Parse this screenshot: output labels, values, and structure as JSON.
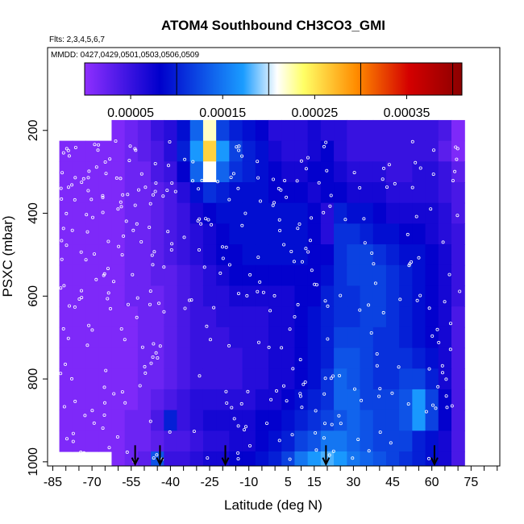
{
  "chart_data": {
    "type": "heatmap",
    "title": "ATOM4 Southbound CH3CO3_GMI",
    "subtitle_flights": "Flts: 2,3,4,5,6,7",
    "subtitle_dates": "MMDD: 0427,0429,0501,0503,0506,0509",
    "xlabel": "Latitude (deg N)",
    "ylabel": "PSXC (mbar)",
    "xlim": [
      -87,
      86
    ],
    "ylim_reversed": [
      1010,
      0
    ],
    "x_ticks": [
      -85,
      -70,
      -55,
      -40,
      -25,
      -10,
      5,
      15,
      30,
      45,
      60,
      75
    ],
    "x_tick_labels": [
      "-85",
      "-70",
      "-55",
      "-40",
      "-25",
      "-10",
      "5",
      "15",
      "30",
      "45",
      "60",
      "75"
    ],
    "x_minor_ticks": [
      -80,
      -75,
      -65,
      -60,
      -50,
      -45,
      -35,
      -30,
      -20,
      -15,
      -5,
      0,
      10,
      20,
      25,
      35,
      40,
      50,
      55,
      65,
      70,
      80,
      85
    ],
    "y_ticks": [
      200,
      400,
      600,
      800,
      1000
    ],
    "y_tick_labels": [
      "200",
      "400",
      "600",
      "800",
      "1000"
    ],
    "colorbar": {
      "range": [
        0,
        0.00041
      ],
      "tick_values": [
        5e-05,
        0.00015,
        0.00025,
        0.00035
      ],
      "tick_labels": [
        "0.00005",
        "0.00015",
        "0.00025",
        "0.00035"
      ],
      "break_values": [
        0.0001,
        0.0002,
        0.0003,
        0.0004
      ],
      "colors": [
        "#8f2fff",
        "#0000cc",
        "#1a9cff",
        "#ffffff",
        "#ffff66",
        "#ff8c00",
        "#d40000",
        "#8b0000"
      ],
      "color_stops": [
        0,
        0.2,
        0.42,
        0.51,
        0.58,
        0.72,
        0.86,
        1.0
      ]
    },
    "latitude_bins": [
      -80,
      -75,
      -70,
      -65,
      -60,
      -55,
      -50,
      -45,
      -40,
      -35,
      -30,
      -25,
      -20,
      -15,
      -10,
      -5,
      0,
      5,
      10,
      15,
      20,
      25,
      30,
      35,
      40,
      45,
      50,
      55,
      60,
      65,
      70
    ],
    "pressure_bins": [
      200,
      250,
      300,
      350,
      400,
      450,
      500,
      550,
      600,
      650,
      700,
      750,
      800,
      850,
      900,
      950,
      1000
    ],
    "values_e5": [
      [
        null,
        null,
        null,
        null,
        1,
        2,
        3,
        5,
        6,
        9,
        14,
        22,
        12,
        10,
        9,
        8,
        6,
        6,
        6,
        7,
        6,
        6,
        5,
        5,
        5,
        5,
        5,
        5,
        5,
        4,
        1
      ],
      [
        1,
        1,
        1,
        1,
        1,
        2,
        3,
        4,
        6,
        10,
        17,
        26,
        17,
        12,
        10,
        9,
        7,
        6,
        6,
        7,
        8,
        6,
        5,
        5,
        5,
        5,
        5,
        5,
        5,
        3,
        1
      ],
      [
        1,
        1,
        1,
        1,
        1,
        2,
        2,
        4,
        5,
        8,
        14,
        21,
        14,
        11,
        10,
        9,
        8,
        7,
        7,
        8,
        8,
        7,
        6,
        6,
        6,
        5,
        5,
        6,
        6,
        5,
        3
      ],
      [
        1,
        1,
        1,
        1,
        1,
        2,
        2,
        3,
        4,
        6,
        9,
        11,
        10,
        9,
        9,
        9,
        8,
        8,
        8,
        7,
        8,
        8,
        7,
        7,
        7,
        6,
        6,
        6,
        6,
        5,
        4
      ],
      [
        1,
        1,
        1,
        1,
        1,
        2,
        2,
        3,
        4,
        5,
        7,
        8,
        9,
        9,
        9,
        9,
        9,
        9,
        9,
        8,
        6,
        10,
        9,
        9,
        8,
        7,
        7,
        7,
        7,
        6,
        4
      ],
      [
        1,
        1,
        1,
        1,
        1,
        2,
        2,
        3,
        4,
        5,
        6,
        7,
        8,
        9,
        9,
        9,
        9,
        9,
        9,
        8,
        6,
        11,
        11,
        10,
        9,
        9,
        8,
        8,
        7,
        6,
        5
      ],
      [
        1,
        1,
        1,
        1,
        1,
        2,
        2,
        3,
        4,
        5,
        6,
        7,
        8,
        8,
        9,
        9,
        9,
        9,
        9,
        8,
        8,
        11,
        12,
        12,
        11,
        10,
        9,
        9,
        8,
        7,
        5
      ],
      [
        1,
        1,
        1,
        1,
        1,
        2,
        2,
        3,
        3,
        4,
        5,
        6,
        7,
        8,
        8,
        8,
        8,
        8,
        8,
        8,
        9,
        11,
        12,
        12,
        12,
        11,
        10,
        9,
        8,
        7,
        5
      ],
      [
        1,
        1,
        1,
        1,
        1,
        2,
        2,
        2,
        3,
        4,
        5,
        6,
        6,
        7,
        7,
        7,
        7,
        7,
        8,
        8,
        10,
        11,
        11,
        12,
        12,
        11,
        10,
        9,
        8,
        7,
        5
      ],
      [
        1,
        1,
        1,
        1,
        1,
        1,
        2,
        2,
        3,
        4,
        5,
        5,
        6,
        6,
        6,
        6,
        7,
        7,
        8,
        9,
        10,
        11,
        11,
        12,
        12,
        11,
        10,
        9,
        8,
        7,
        4
      ],
      [
        1,
        1,
        1,
        1,
        1,
        1,
        2,
        2,
        3,
        4,
        5,
        5,
        5,
        6,
        6,
        6,
        7,
        7,
        8,
        9,
        10,
        12,
        12,
        12,
        11,
        11,
        10,
        9,
        8,
        7,
        4
      ],
      [
        1,
        1,
        1,
        1,
        1,
        1,
        2,
        2,
        3,
        4,
        5,
        5,
        5,
        5,
        6,
        6,
        7,
        7,
        8,
        9,
        10,
        13,
        13,
        12,
        11,
        11,
        11,
        10,
        9,
        7,
        4
      ],
      [
        1,
        1,
        1,
        1,
        1,
        1,
        2,
        2,
        3,
        4,
        5,
        5,
        5,
        5,
        6,
        6,
        7,
        7,
        8,
        9,
        11,
        14,
        13,
        12,
        11,
        11,
        12,
        12,
        10,
        7,
        4
      ],
      [
        1,
        1,
        1,
        1,
        1,
        1,
        2,
        3,
        4,
        5,
        6,
        6,
        6,
        6,
        6,
        7,
        7,
        8,
        9,
        10,
        11,
        14,
        14,
        12,
        12,
        12,
        13,
        17,
        12,
        8,
        4
      ],
      [
        1,
        1,
        1,
        1,
        1,
        2,
        2,
        4,
        10,
        5,
        6,
        7,
        7,
        7,
        7,
        8,
        8,
        9,
        10,
        11,
        12,
        13,
        14,
        13,
        12,
        12,
        13,
        17,
        12,
        8,
        4
      ],
      [
        1,
        1,
        1,
        1,
        1,
        2,
        2,
        3,
        4,
        4,
        5,
        6,
        6,
        7,
        7,
        8,
        9,
        10,
        12,
        13,
        15,
        15,
        14,
        13,
        12,
        12,
        12,
        10,
        9,
        7,
        4
      ],
      [
        null,
        null,
        null,
        null,
        1,
        2,
        3,
        13,
        5,
        5,
        6,
        7,
        7,
        8,
        8,
        9,
        10,
        12,
        15,
        17,
        18,
        17,
        15,
        14,
        13,
        12,
        11,
        10,
        9,
        7,
        4
      ]
    ],
    "flight_markers_lat": [
      -53.5,
      -44,
      -19,
      19.5,
      61
    ],
    "observation_points": "white circles marking sample locations along the flight tracks"
  }
}
